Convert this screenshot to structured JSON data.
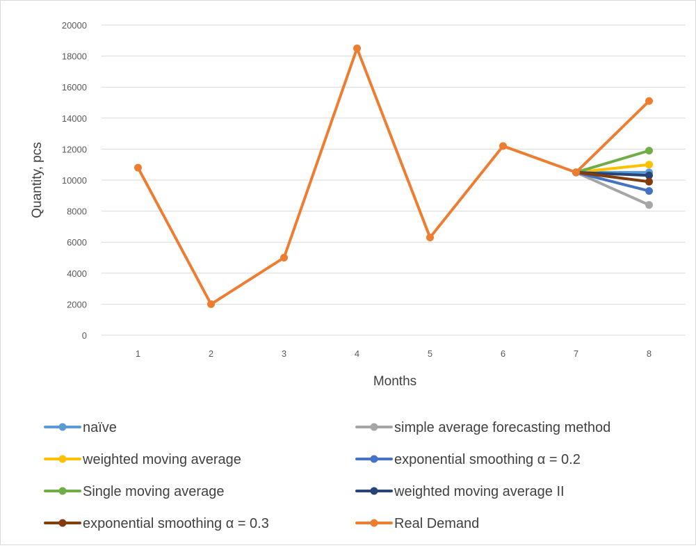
{
  "chart_data": {
    "type": "line",
    "title": "",
    "xlabel": "Months",
    "ylabel": "Quantity, pcs",
    "x": [
      1,
      2,
      3,
      4,
      5,
      6,
      7,
      8
    ],
    "ylim": [
      0,
      20000
    ],
    "yticks": [
      0,
      2000,
      4000,
      6000,
      8000,
      10000,
      12000,
      14000,
      16000,
      18000,
      20000
    ],
    "grid": true,
    "legend_position": "bottom",
    "series": [
      {
        "name": "naïve",
        "color": "#5b9bd5",
        "points": [
          [
            7,
            10500
          ],
          [
            8,
            10500
          ]
        ]
      },
      {
        "name": "simple  average forecasting method",
        "color": "#a5a5a5",
        "points": [
          [
            7,
            10500
          ],
          [
            8,
            8400
          ]
        ]
      },
      {
        "name": "weighted moving average",
        "color": "#ffc000",
        "points": [
          [
            7,
            10500
          ],
          [
            8,
            11000
          ]
        ]
      },
      {
        "name": "exponential smoothing α = 0.2",
        "color": "#4472c4",
        "points": [
          [
            7,
            10500
          ],
          [
            8,
            9300
          ]
        ]
      },
      {
        "name": "Single moving average",
        "color": "#70ad47",
        "points": [
          [
            7,
            10500
          ],
          [
            8,
            11900
          ]
        ]
      },
      {
        "name": "weighted moving average II",
        "color": "#264478",
        "points": [
          [
            7,
            10500
          ],
          [
            8,
            10300
          ]
        ]
      },
      {
        "name": "exponential smoothing α = 0.3",
        "color": "#843c0c",
        "points": [
          [
            7,
            10500
          ],
          [
            8,
            9900
          ]
        ]
      },
      {
        "name": "Real Demand",
        "color": "#ed7d31",
        "points": [
          [
            1,
            10800
          ],
          [
            2,
            2000
          ],
          [
            3,
            5000
          ],
          [
            4,
            18500
          ],
          [
            5,
            6300
          ],
          [
            6,
            12200
          ],
          [
            7,
            10500
          ],
          [
            8,
            15100
          ]
        ]
      }
    ]
  },
  "legend": [
    {
      "text": "naïve",
      "color": "#5b9bd5"
    },
    {
      "text": "simple  average forecasting method",
      "color": "#a5a5a5"
    },
    {
      "text": "weighted moving average",
      "color": "#ffc000"
    },
    {
      "text": "exponential smoothing α = 0.2",
      "color": "#4472c4"
    },
    {
      "text": "Single moving average",
      "color": "#70ad47"
    },
    {
      "text": "weighted moving average II",
      "color": "#264478"
    },
    {
      "text": "exponential smoothing α = 0.3",
      "color": "#843c0c"
    },
    {
      "text": "Real Demand",
      "color": "#ed7d31"
    }
  ]
}
